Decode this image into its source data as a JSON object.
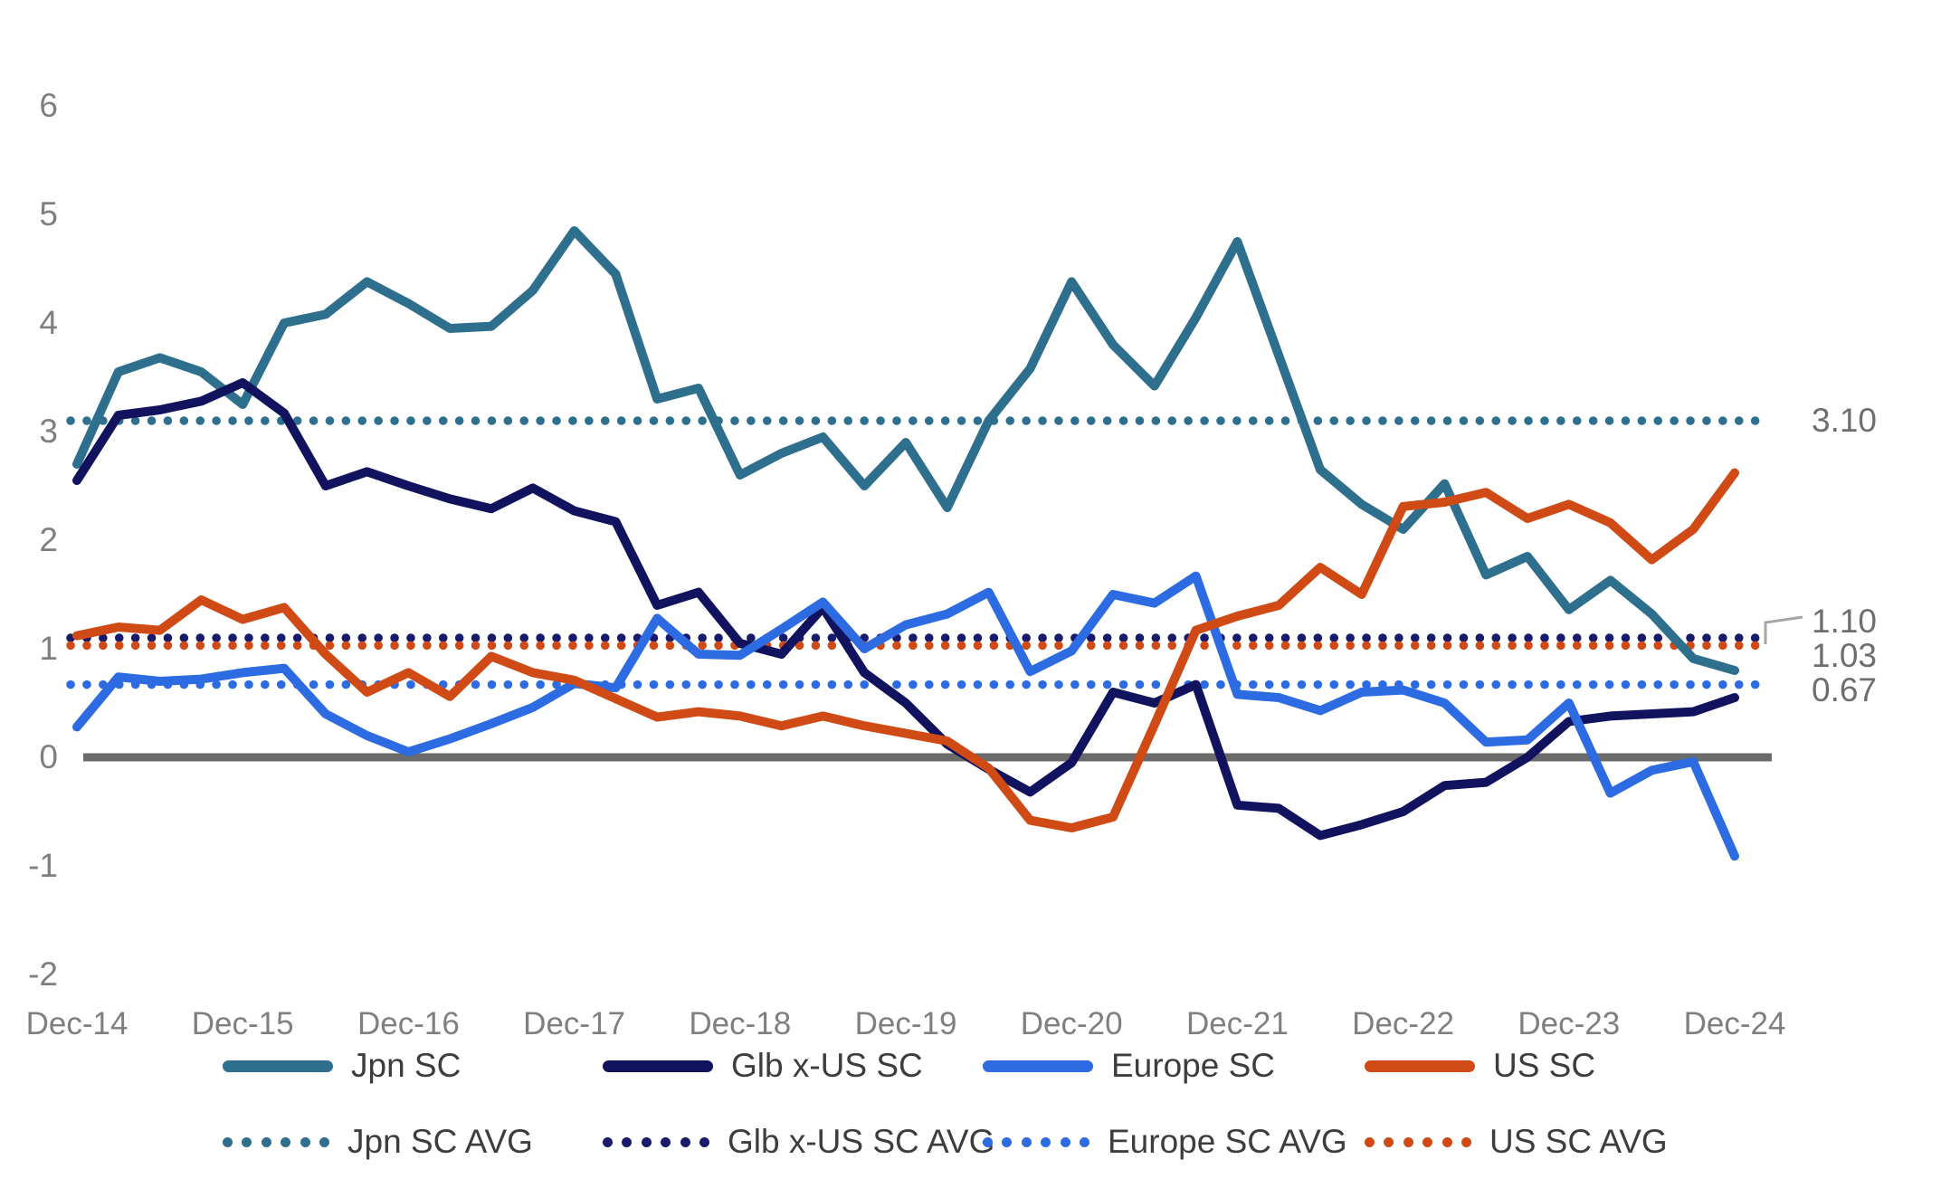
{
  "chart_data": {
    "type": "line",
    "title": "",
    "xlabel": "",
    "ylabel": "",
    "ylim": [
      -2,
      6
    ],
    "y_ticks": [
      "6",
      "5",
      "4",
      "3",
      "2",
      "1",
      "0",
      "-1",
      "-2"
    ],
    "y_tick_values": [
      6,
      5,
      4,
      3,
      2,
      1,
      0,
      -1,
      -2
    ],
    "x_tick_labels": [
      "Dec-14",
      "Dec-15",
      "Dec-16",
      "Dec-17",
      "Dec-18",
      "Dec-19",
      "Dec-20",
      "Dec-21",
      "Dec-22",
      "Dec-23",
      "Dec-24"
    ],
    "points_per_year": 4,
    "grid": "off",
    "legend_position": "bottom",
    "series": [
      {
        "name": "Jpn SC",
        "color": "#2d6f8d",
        "values": [
          2.7,
          3.55,
          3.68,
          3.55,
          3.25,
          4.0,
          4.08,
          4.38,
          4.18,
          3.95,
          3.97,
          4.3,
          4.85,
          4.45,
          3.3,
          3.4,
          2.6,
          2.8,
          2.95,
          2.5,
          2.9,
          2.3,
          3.1,
          3.58,
          4.38,
          3.8,
          3.42,
          4.05,
          4.75,
          3.7,
          2.65,
          2.33,
          2.1,
          2.52,
          1.68,
          1.85,
          1.36,
          1.63,
          1.32,
          0.91,
          0.8
        ]
      },
      {
        "name": "Glb x-US SC",
        "color": "#12135e",
        "values": [
          2.55,
          3.15,
          3.2,
          3.28,
          3.45,
          3.17,
          2.5,
          2.63,
          2.5,
          2.38,
          2.29,
          2.48,
          2.27,
          2.17,
          1.4,
          1.52,
          1.05,
          0.95,
          1.38,
          0.78,
          0.5,
          0.12,
          -0.11,
          -0.32,
          -0.05,
          0.6,
          0.5,
          0.67,
          -0.44,
          -0.47,
          -0.72,
          -0.62,
          -0.5,
          -0.26,
          -0.23,
          0.0,
          0.33,
          0.38,
          0.4,
          0.42,
          0.55
        ]
      },
      {
        "name": "Europe SC",
        "color": "#2c6be2",
        "values": [
          0.28,
          0.74,
          0.7,
          0.72,
          0.78,
          0.82,
          0.4,
          0.2,
          0.05,
          0.17,
          0.31,
          0.46,
          0.68,
          0.64,
          1.28,
          0.95,
          0.94,
          1.18,
          1.43,
          1.0,
          1.22,
          1.32,
          1.52,
          0.79,
          0.98,
          1.5,
          1.42,
          1.67,
          0.58,
          0.55,
          0.43,
          0.6,
          0.62,
          0.5,
          0.14,
          0.16,
          0.5,
          -0.33,
          -0.12,
          -0.04,
          -0.91
        ]
      },
      {
        "name": "US SC",
        "color": "#d04a16",
        "values": [
          1.12,
          1.2,
          1.17,
          1.45,
          1.27,
          1.38,
          0.95,
          0.6,
          0.78,
          0.56,
          0.93,
          0.78,
          0.71,
          0.54,
          0.37,
          0.42,
          0.38,
          0.29,
          0.38,
          0.29,
          0.22,
          0.15,
          -0.1,
          -0.58,
          -0.65,
          -0.55,
          0.3,
          1.17,
          1.3,
          1.4,
          1.75,
          1.5,
          2.31,
          2.35,
          2.44,
          2.2,
          2.33,
          2.16,
          1.82,
          2.1,
          2.62
        ]
      }
    ],
    "avg_lines": [
      {
        "name": "Jpn SC AVG",
        "color": "#2d6f8d",
        "value": 3.1,
        "label": "3.10"
      },
      {
        "name": "Glb x-US SC AVG",
        "color": "#181a6b",
        "value": 1.1,
        "label": "1.10"
      },
      {
        "name": "US SC AVG",
        "color": "#d04a16",
        "value": 1.03,
        "label": "1.03"
      },
      {
        "name": "Europe SC AVG",
        "color": "#2c6be2",
        "value": 0.67,
        "label": "0.67"
      }
    ],
    "legend": {
      "row1": [
        {
          "label": "Jpn SC",
          "color": "#2d6f8d",
          "dotted": false
        },
        {
          "label": "Glb x-US SC",
          "color": "#12135e",
          "dotted": false
        },
        {
          "label": "Europe SC",
          "color": "#2c6be2",
          "dotted": false
        },
        {
          "label": "US SC",
          "color": "#d04a16",
          "dotted": false
        }
      ],
      "row2": [
        {
          "label": "Jpn SC AVG",
          "color": "#2d6f8d",
          "dotted": true
        },
        {
          "label": "Glb x-US SC AVG",
          "color": "#181a6b",
          "dotted": true
        },
        {
          "label": "Europe SC AVG",
          "color": "#2c6be2",
          "dotted": true
        },
        {
          "label": "US SC AVG",
          "color": "#d04a16",
          "dotted": true
        }
      ]
    },
    "zero_line_color": "#6b6b6b",
    "axis_label_color": "#7f7f7f",
    "right_label_color": "#6e6e6e"
  }
}
